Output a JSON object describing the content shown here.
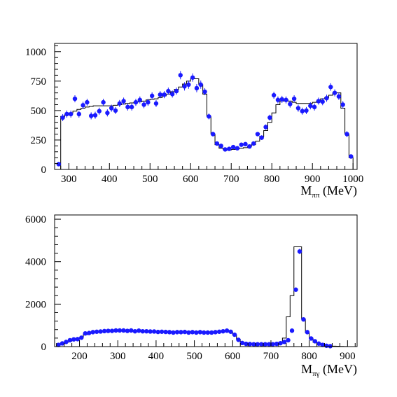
{
  "chart_data": [
    {
      "type": "scatter",
      "title": "",
      "xlabel": {
        "main": "M",
        "sub": "ππ",
        "unit": " (MeV)"
      },
      "ylabel": "",
      "xlim": [
        265,
        1010
      ],
      "ylim": [
        0,
        1070
      ],
      "xticks": [
        300,
        400,
        500,
        600,
        700,
        800,
        900,
        1000
      ],
      "yticks": [
        0,
        250,
        500,
        750,
        1000
      ],
      "grid": false,
      "colors": {
        "points": "#1a1aff",
        "histogram": "#000000"
      },
      "series": [
        {
          "kind": "histogram",
          "x": [
            275,
            285,
            295,
            305,
            315,
            325,
            335,
            345,
            355,
            365,
            375,
            385,
            395,
            405,
            415,
            425,
            435,
            445,
            455,
            465,
            475,
            485,
            495,
            505,
            515,
            525,
            535,
            545,
            555,
            565,
            575,
            585,
            595,
            605,
            615,
            625,
            635,
            645,
            655,
            665,
            675,
            685,
            695,
            705,
            715,
            725,
            735,
            745,
            755,
            765,
            775,
            785,
            795,
            805,
            815,
            825,
            835,
            845,
            855,
            865,
            875,
            885,
            895,
            905,
            915,
            925,
            935,
            945,
            955,
            965,
            975,
            985,
            995
          ],
          "values": [
            0,
            450,
            465,
            480,
            495,
            510,
            520,
            530,
            535,
            540,
            540,
            540,
            540,
            540,
            545,
            550,
            555,
            560,
            565,
            570,
            575,
            580,
            590,
            595,
            600,
            610,
            625,
            640,
            660,
            680,
            700,
            725,
            750,
            770,
            770,
            720,
            640,
            450,
            300,
            210,
            180,
            170,
            165,
            170,
            175,
            180,
            185,
            195,
            210,
            240,
            280,
            330,
            400,
            480,
            550,
            580,
            590,
            580,
            570,
            560,
            560,
            560,
            560,
            570,
            580,
            600,
            610,
            630,
            650,
            650,
            520,
            300,
            100
          ]
        },
        {
          "kind": "data-points",
          "x": [
            275,
            285,
            295,
            305,
            315,
            325,
            335,
            345,
            355,
            365,
            375,
            385,
            395,
            405,
            415,
            425,
            435,
            445,
            455,
            465,
            475,
            485,
            495,
            505,
            515,
            525,
            535,
            545,
            555,
            565,
            575,
            585,
            595,
            605,
            615,
            625,
            635,
            645,
            655,
            665,
            675,
            685,
            695,
            705,
            715,
            725,
            735,
            745,
            755,
            765,
            775,
            785,
            795,
            805,
            815,
            825,
            835,
            845,
            855,
            865,
            875,
            885,
            895,
            905,
            915,
            925,
            935,
            945,
            955,
            965,
            975,
            985,
            995
          ],
          "y": [
            45,
            440,
            470,
            470,
            600,
            470,
            545,
            570,
            455,
            460,
            495,
            570,
            480,
            520,
            500,
            560,
            580,
            530,
            530,
            570,
            590,
            550,
            570,
            625,
            560,
            635,
            635,
            665,
            640,
            665,
            800,
            705,
            720,
            780,
            690,
            720,
            660,
            450,
            300,
            220,
            200,
            170,
            175,
            190,
            180,
            210,
            215,
            195,
            220,
            300,
            270,
            360,
            440,
            630,
            590,
            595,
            590,
            555,
            600,
            520,
            495,
            500,
            540,
            530,
            580,
            575,
            605,
            700,
            650,
            620,
            550,
            300,
            110
          ],
          "errors": [
            10,
            30,
            30,
            30,
            30,
            30,
            30,
            30,
            30,
            30,
            30,
            30,
            30,
            30,
            30,
            30,
            30,
            30,
            30,
            30,
            30,
            30,
            30,
            30,
            30,
            30,
            30,
            30,
            30,
            30,
            35,
            35,
            35,
            35,
            35,
            35,
            30,
            25,
            20,
            18,
            16,
            15,
            15,
            15,
            15,
            15,
            15,
            15,
            16,
            18,
            20,
            22,
            25,
            30,
            30,
            30,
            30,
            30,
            30,
            30,
            30,
            30,
            30,
            30,
            30,
            30,
            30,
            32,
            30,
            30,
            30,
            25,
            15
          ]
        }
      ]
    },
    {
      "type": "scatter",
      "title": "",
      "xlabel": {
        "main": "M",
        "sub": "πγ",
        "unit": " (MeV)"
      },
      "ylabel": "",
      "xlim": [
        135,
        925
      ],
      "ylim": [
        0,
        6200
      ],
      "xticks": [
        200,
        300,
        400,
        500,
        600,
        700,
        800,
        900
      ],
      "yticks": [
        0,
        2000,
        4000,
        6000
      ],
      "grid": false,
      "colors": {
        "points": "#1a1aff",
        "histogram": "#000000"
      },
      "series": [
        {
          "kind": "histogram",
          "x": [
            145,
            155,
            165,
            175,
            185,
            195,
            205,
            215,
            225,
            235,
            245,
            255,
            265,
            275,
            285,
            295,
            305,
            315,
            325,
            335,
            345,
            355,
            365,
            375,
            385,
            395,
            405,
            415,
            425,
            435,
            445,
            455,
            465,
            475,
            485,
            495,
            505,
            515,
            525,
            535,
            545,
            555,
            565,
            575,
            585,
            595,
            605,
            615,
            625,
            635,
            645,
            655,
            665,
            675,
            685,
            695,
            705,
            715,
            725,
            735,
            745,
            755,
            765,
            775,
            785,
            795,
            805,
            815,
            825,
            835,
            845,
            855,
            865,
            875,
            885,
            895,
            905,
            915
          ],
          "values": [
            80,
            120,
            180,
            260,
            320,
            370,
            420,
            560,
            640,
            690,
            700,
            710,
            720,
            720,
            730,
            730,
            730,
            740,
            740,
            730,
            720,
            710,
            700,
            700,
            690,
            690,
            680,
            680,
            670,
            670,
            660,
            660,
            660,
            660,
            660,
            660,
            660,
            660,
            660,
            660,
            660,
            670,
            680,
            700,
            700,
            680,
            550,
            340,
            180,
            110,
            90,
            90,
            90,
            90,
            90,
            95,
            110,
            130,
            200,
            400,
            1400,
            2400,
            4700,
            4700,
            1300,
            650,
            380,
            200,
            100,
            60,
            40,
            30,
            20,
            15,
            10,
            5,
            2,
            0
          ]
        },
        {
          "kind": "data-points",
          "x": [
            145,
            155,
            165,
            175,
            185,
            195,
            205,
            215,
            225,
            235,
            245,
            255,
            265,
            275,
            285,
            295,
            305,
            315,
            325,
            335,
            345,
            355,
            365,
            375,
            385,
            395,
            405,
            415,
            425,
            435,
            445,
            455,
            465,
            475,
            485,
            495,
            505,
            515,
            525,
            535,
            545,
            555,
            565,
            575,
            585,
            595,
            605,
            615,
            625,
            635,
            645,
            655,
            665,
            675,
            685,
            695,
            705,
            715,
            725,
            735,
            745,
            755,
            765,
            775,
            785,
            795,
            805,
            815,
            825,
            835,
            845,
            855
          ],
          "y": [
            80,
            150,
            220,
            300,
            340,
            350,
            420,
            620,
            640,
            680,
            700,
            710,
            730,
            740,
            740,
            760,
            760,
            760,
            740,
            760,
            720,
            750,
            720,
            720,
            710,
            710,
            690,
            700,
            690,
            680,
            660,
            680,
            680,
            690,
            660,
            680,
            660,
            680,
            660,
            660,
            660,
            680,
            700,
            720,
            750,
            700,
            560,
            320,
            170,
            130,
            120,
            110,
            110,
            110,
            110,
            110,
            110,
            130,
            160,
            220,
            300,
            750,
            2680,
            4480,
            1280,
            680,
            380,
            250,
            140,
            80,
            40,
            20
          ],
          "errors": [
            40,
            40,
            40,
            40,
            40,
            40,
            40,
            40,
            40,
            40,
            40,
            40,
            40,
            40,
            40,
            40,
            40,
            40,
            40,
            40,
            40,
            40,
            40,
            40,
            40,
            40,
            40,
            40,
            40,
            40,
            40,
            40,
            40,
            40,
            40,
            40,
            40,
            40,
            40,
            40,
            40,
            40,
            40,
            40,
            40,
            40,
            40,
            40,
            40,
            40,
            40,
            40,
            40,
            40,
            40,
            40,
            40,
            40,
            40,
            40,
            40,
            60,
            100,
            130,
            80,
            60,
            40,
            40,
            40,
            40,
            40,
            40
          ]
        }
      ]
    }
  ]
}
